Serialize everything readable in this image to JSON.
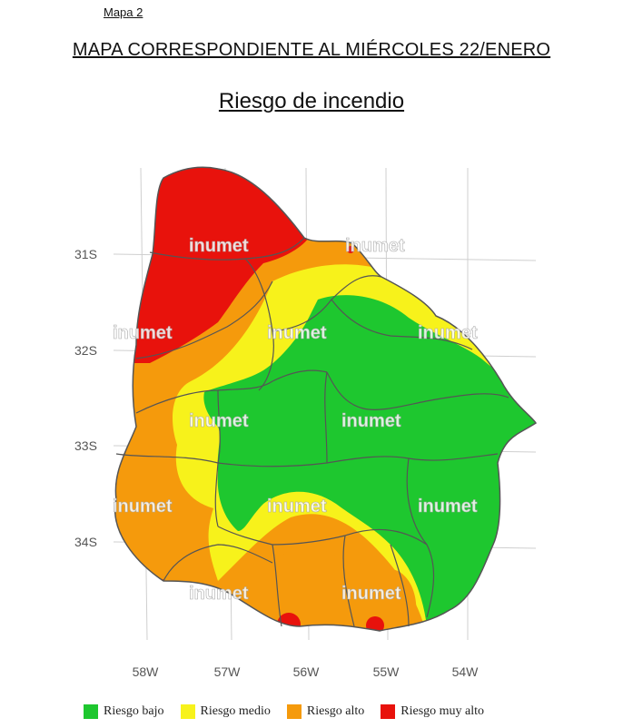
{
  "header": {
    "map_label": "Mapa 2",
    "title": "MAPA CORRESPONDIENTE AL MIÉRCOLES 22/ENERO",
    "subtitle": "Riesgo de incendio"
  },
  "axes": {
    "lat_ticks": [
      "31S",
      "32S",
      "33S",
      "34S"
    ],
    "lon_ticks": [
      "58W",
      "57W",
      "56W",
      "55W",
      "54W"
    ]
  },
  "watermark": "inumet",
  "legend": [
    {
      "label": "Riesgo bajo",
      "color": "#1ec72f"
    },
    {
      "label": "Riesgo medio",
      "color": "#f7f21b"
    },
    {
      "label": "Riesgo alto",
      "color": "#f59a0c"
    },
    {
      "label": "Riesgo muy alto",
      "color": "#e8120c"
    }
  ]
}
